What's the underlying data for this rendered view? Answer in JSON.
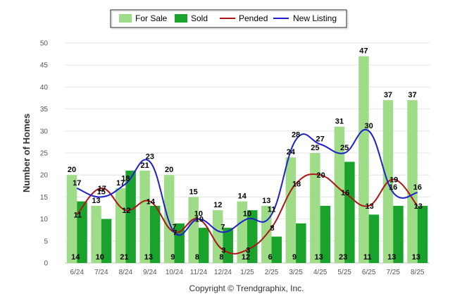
{
  "copyright": "Copyright © Trendgraphix, Inc.",
  "chart_data": {
    "type": "bar",
    "title": "",
    "xlabel": "",
    "ylabel": "Number of Homes",
    "ylim": [
      0,
      50
    ],
    "yticks": [
      0,
      5,
      10,
      15,
      20,
      25,
      30,
      35,
      40,
      45,
      50
    ],
    "grid": true,
    "legend_position": "top-center",
    "categories": [
      "6/24",
      "7/24",
      "8/24",
      "9/24",
      "10/24",
      "11/24",
      "12/24",
      "1/25",
      "2/25",
      "3/25",
      "4/25",
      "5/25",
      "6/25",
      "7/25",
      "8/25"
    ],
    "series": [
      {
        "name": "For Sale",
        "kind": "bar",
        "color": "#9fdc88",
        "values": [
          20,
          13,
          17,
          21,
          20,
          15,
          12,
          14,
          13,
          24,
          25,
          31,
          47,
          37,
          37
        ]
      },
      {
        "name": "Sold",
        "kind": "bar",
        "color": "#1aa32c",
        "values": [
          14,
          10,
          21,
          13,
          9,
          8,
          8,
          12,
          6,
          9,
          13,
          23,
          11,
          13,
          13
        ]
      },
      {
        "name": "Pended",
        "kind": "line",
        "color": "#b01515",
        "values": [
          11,
          17,
          12,
          14,
          7,
          10,
          3,
          3,
          8,
          18,
          20,
          16,
          13,
          19,
          13
        ]
      },
      {
        "name": "New Listing",
        "kind": "line",
        "color": "#1f1fcc",
        "values": [
          17,
          15,
          18,
          23,
          7,
          10,
          7,
          10,
          11,
          28,
          27,
          25,
          30,
          16,
          16
        ]
      }
    ]
  }
}
